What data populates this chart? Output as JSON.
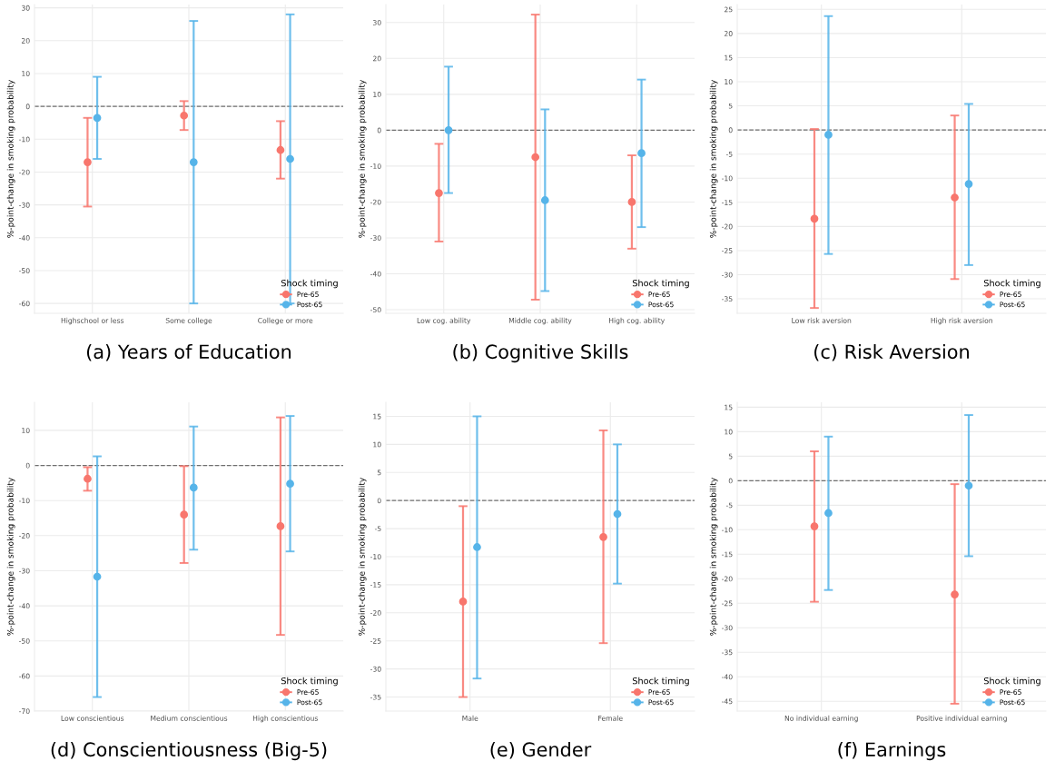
{
  "chart_data": [
    {
      "type": "scatter",
      "title": "(a) Years of Education",
      "ylabel": "%-point-change in smoking probability",
      "legend_title": "Shock timing",
      "legend": "bottom right",
      "grid": true,
      "marker": "circle",
      "categories": [
        "Highschool or less",
        "Some college",
        "College or more"
      ],
      "series": [
        {
          "name": "Pre-65",
          "color": "#f8766d",
          "values": [
            -17,
            -2.8,
            -13.3
          ],
          "errors": [
            [
              -30.5,
              -3.5
            ],
            [
              -7.2,
              1.6
            ],
            [
              -22,
              -4.5
            ]
          ]
        },
        {
          "name": "Post-65",
          "color": "#56b4e9",
          "values": [
            -3.5,
            -17,
            -16
          ],
          "errors": [
            [
              -16,
              9
            ],
            [
              -60,
              26
            ],
            [
              -60,
              28
            ]
          ]
        }
      ],
      "ylim": [
        -63,
        31
      ],
      "yticks": [
        -60,
        -50,
        -40,
        -30,
        -20,
        -10,
        0,
        10,
        20,
        30
      ],
      "ref_lines": [
        {
          "axis": "y",
          "value": 0,
          "line_style": "dashed",
          "color": "#707070"
        }
      ]
    },
    {
      "type": "scatter",
      "title": "(b) Cognitive Skills",
      "ylabel": "%-point-change in smoking probability",
      "legend_title": "Shock timing",
      "legend": "bottom right",
      "grid": true,
      "marker": "circle",
      "categories": [
        "Low cog. ability",
        "Middle cog. ability",
        "High cog. ability"
      ],
      "series": [
        {
          "name": "Pre-65",
          "color": "#f8766d",
          "values": [
            -17.5,
            -7.5,
            -20
          ],
          "errors": [
            [
              -31,
              -3.8
            ],
            [
              -47.2,
              32.2
            ],
            [
              -33,
              -7
            ]
          ]
        },
        {
          "name": "Post-65",
          "color": "#56b4e9",
          "values": [
            0,
            -19.5,
            -6.4
          ],
          "errors": [
            [
              -17.5,
              17.7
            ],
            [
              -44.8,
              5.8
            ],
            [
              -27,
              14.1
            ]
          ]
        }
      ],
      "ylim": [
        -51,
        35
      ],
      "yticks": [
        -50,
        -40,
        -30,
        -20,
        -10,
        0,
        10,
        20,
        30
      ],
      "ref_lines": [
        {
          "axis": "y",
          "value": 0,
          "line_style": "dashed",
          "color": "#707070"
        }
      ]
    },
    {
      "type": "scatter",
      "title": "(c) Risk Aversion",
      "ylabel": "%-point-change in smoking probability",
      "legend_title": "Shock timing",
      "legend": "bottom right",
      "grid": true,
      "marker": "circle",
      "categories": [
        "Low risk aversion",
        "High risk aversion"
      ],
      "series": [
        {
          "name": "Pre-65",
          "color": "#f8766d",
          "values": [
            -18.4,
            -14
          ],
          "errors": [
            [
              -36.9,
              0.2
            ],
            [
              -30.9,
              3
            ]
          ]
        },
        {
          "name": "Post-65",
          "color": "#56b4e9",
          "values": [
            -1,
            -11.2
          ],
          "errors": [
            [
              -25.7,
              23.6
            ],
            [
              -28,
              5.4
            ]
          ]
        }
      ],
      "ylim": [
        -38,
        26
      ],
      "yticks": [
        -35,
        -30,
        -25,
        -20,
        -15,
        -10,
        -5,
        0,
        5,
        10,
        15,
        20,
        25
      ],
      "ref_lines": [
        {
          "axis": "y",
          "value": 0,
          "line_style": "dashed",
          "color": "#707070"
        }
      ]
    },
    {
      "type": "scatter",
      "title": "(d) Conscientiousness (Big-5)",
      "ylabel": "%-point-change in smoking probability",
      "legend_title": "Shock timing",
      "legend": "bottom right",
      "grid": true,
      "marker": "circle",
      "categories": [
        "Low conscientious",
        "Medium conscientious",
        "High conscientious"
      ],
      "series": [
        {
          "name": "Pre-65",
          "color": "#f8766d",
          "values": [
            -3.8,
            -14,
            -17.3
          ],
          "errors": [
            [
              -7.2,
              -0.5
            ],
            [
              -27.8,
              -0.2
            ],
            [
              -48.3,
              13.7
            ]
          ]
        },
        {
          "name": "Post-65",
          "color": "#56b4e9",
          "values": [
            -31.7,
            -6.3,
            -5.2
          ],
          "errors": [
            [
              -66,
              2.6
            ],
            [
              -24,
              11.1
            ],
            [
              -24.5,
              14.1
            ]
          ]
        }
      ],
      "ylim": [
        -70,
        18
      ],
      "yticks": [
        -70,
        -60,
        -50,
        -40,
        -30,
        -20,
        -10,
        0,
        10
      ],
      "ref_lines": [
        {
          "axis": "y",
          "value": 0,
          "line_style": "dashed",
          "color": "#707070"
        }
      ]
    },
    {
      "type": "scatter",
      "title": "(e) Gender",
      "ylabel": "%-point-change in smoking probability",
      "legend_title": "Shock timing",
      "legend": "bottom right",
      "grid": true,
      "marker": "circle",
      "categories": [
        "Male",
        "Female"
      ],
      "series": [
        {
          "name": "Pre-65",
          "color": "#f8766d",
          "values": [
            -18,
            -6.5
          ],
          "errors": [
            [
              -35,
              -1
            ],
            [
              -25.4,
              12.5
            ]
          ]
        },
        {
          "name": "Post-65",
          "color": "#56b4e9",
          "values": [
            -8.3,
            -2.4
          ],
          "errors": [
            [
              -31.7,
              15
            ],
            [
              -14.8,
              10
            ]
          ]
        }
      ],
      "ylim": [
        -37.5,
        17.5
      ],
      "yticks": [
        -35,
        -30,
        -25,
        -20,
        -15,
        -10,
        -5,
        0,
        5,
        10,
        15
      ],
      "ref_lines": [
        {
          "axis": "y",
          "value": 0,
          "line_style": "dashed",
          "color": "#707070"
        }
      ]
    },
    {
      "type": "scatter",
      "title": "(f) Earnings",
      "ylabel": "%-point-change in smoking probability",
      "legend_title": "Shock timing",
      "legend": "bottom right",
      "grid": true,
      "marker": "circle",
      "categories": [
        "No individual earning",
        "Positive individual earning"
      ],
      "series": [
        {
          "name": "Pre-65",
          "color": "#f8766d",
          "values": [
            -9.3,
            -23.2
          ],
          "errors": [
            [
              -24.7,
              6
            ],
            [
              -45.5,
              -0.7
            ]
          ]
        },
        {
          "name": "Post-65",
          "color": "#56b4e9",
          "values": [
            -6.6,
            -1
          ],
          "errors": [
            [
              -22.3,
              9
            ],
            [
              -15.4,
              13.4
            ]
          ]
        }
      ],
      "ylim": [
        -47,
        16
      ],
      "yticks": [
        -45,
        -40,
        -35,
        -30,
        -25,
        -20,
        -15,
        -10,
        -5,
        0,
        5,
        10,
        15
      ],
      "ref_lines": [
        {
          "axis": "y",
          "value": 0,
          "line_style": "dashed",
          "color": "#707070"
        }
      ]
    }
  ]
}
